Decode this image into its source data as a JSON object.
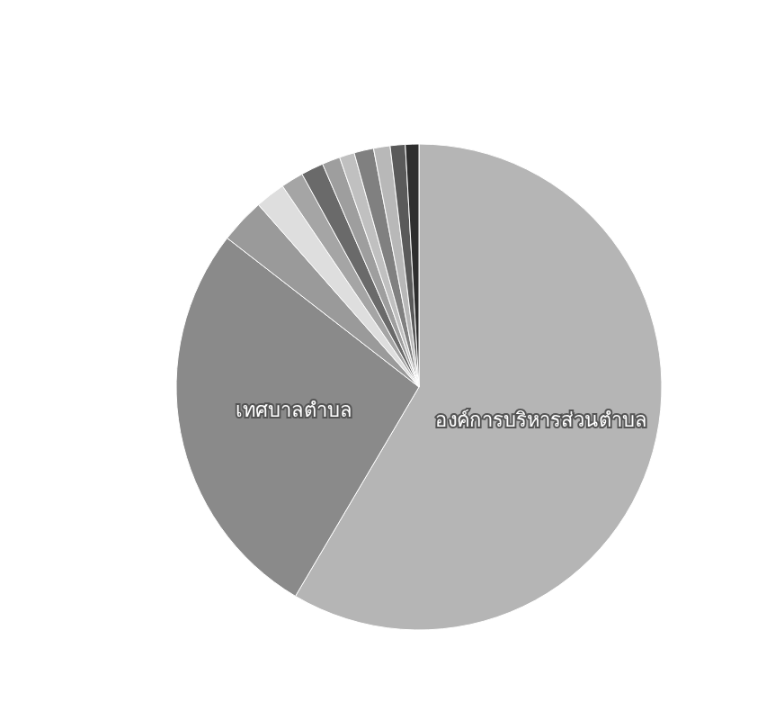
{
  "chart_data": {
    "type": "pie",
    "categories": [
      "องค์การบริหารส่วนตำบล",
      "เทศบาลตำบล",
      null,
      null,
      null,
      null,
      null,
      null,
      null,
      null,
      null,
      null
    ],
    "values": [
      58.5,
      27,
      3,
      2,
      1.5,
      1.5,
      1.2,
      1,
      1.3,
      1.1,
      1,
      0.9
    ],
    "colors": [
      "#b5b5b5",
      "#8a8a8a",
      "#9a9a9a",
      "#dedede",
      "#a5a5a5",
      "#6a6a6a",
      "#9e9e9e",
      "#c0c0c0",
      "#808080",
      "#b8b8b8",
      "#5a5a5a",
      "#2e2e2e"
    ]
  }
}
